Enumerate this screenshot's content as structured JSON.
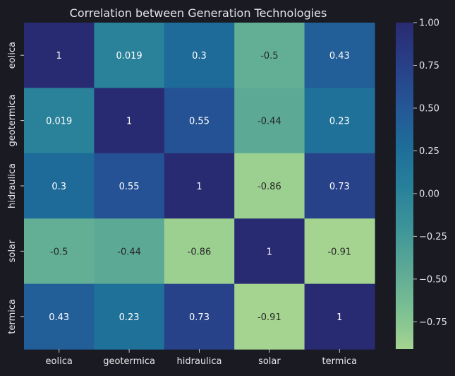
{
  "chart_data": {
    "type": "heatmap",
    "title": "Correlation between Generation Technologies",
    "xlabel": "",
    "ylabel": "",
    "x_categories": [
      "eolica",
      "geotermica",
      "hidraulica",
      "solar",
      "termica"
    ],
    "y_categories": [
      "eolica",
      "geotermica",
      "hidraulica",
      "solar",
      "termica"
    ],
    "values": [
      [
        1,
        0.019,
        0.3,
        -0.5,
        0.43
      ],
      [
        0.019,
        1,
        0.55,
        -0.44,
        0.23
      ],
      [
        0.3,
        0.55,
        1,
        -0.86,
        0.73
      ],
      [
        -0.5,
        -0.44,
        -0.86,
        1,
        -0.91
      ],
      [
        0.43,
        0.23,
        0.73,
        -0.91,
        1
      ]
    ],
    "value_labels": [
      [
        "1",
        "0.019",
        "0.3",
        "-0.5",
        "0.43"
      ],
      [
        "0.019",
        "1",
        "0.55",
        "-0.44",
        "0.23"
      ],
      [
        "0.3",
        "0.55",
        "1",
        "-0.86",
        "0.73"
      ],
      [
        "-0.5",
        "-0.44",
        "-0.86",
        "1",
        "-0.91"
      ],
      [
        "0.43",
        "0.23",
        "0.73",
        "-0.91",
        "1"
      ]
    ],
    "colorbar": {
      "min": -0.91,
      "max": 1,
      "ticks": [
        1.0,
        0.75,
        0.5,
        0.25,
        0.0,
        -0.25,
        -0.5,
        -0.75
      ],
      "tick_labels": [
        "1.00",
        "0.75",
        "0.50",
        "0.25",
        "0.00",
        "−0.25",
        "−0.50",
        "−0.75"
      ],
      "colormap": "crest",
      "color_stops": [
        "#a5d491",
        "#79bf93",
        "#5ba896",
        "#3c9499",
        "#27809a",
        "#1e6c99",
        "#255596",
        "#283f87",
        "#292b72"
      ]
    },
    "colors": {
      "background": "#1a1a22",
      "text": "#e6e6ea",
      "tick_line": "#c8c8d0",
      "annotation_light": "#ffffff",
      "annotation_dark": "#262626"
    },
    "grid": false,
    "legend": "colorbar-right"
  }
}
